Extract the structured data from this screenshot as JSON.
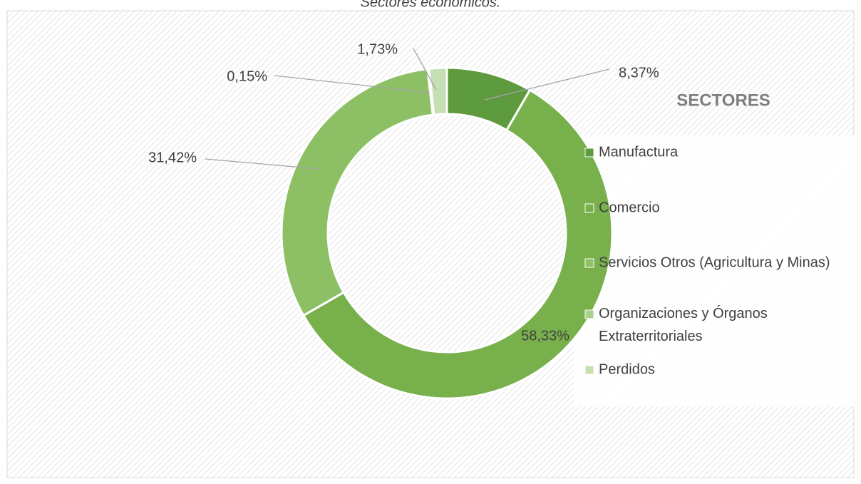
{
  "chart_data": {
    "type": "donut",
    "title": "Sectores económicos.",
    "legend_title": "SECTORES",
    "categories": [
      "Manufactura",
      "Comercio",
      "Servicios Otros (Agricultura y Minas)",
      "Organizaciones y Órganos Extraterritoriales",
      "Perdidos"
    ],
    "values": [
      8.37,
      58.33,
      31.42,
      0.15,
      1.73
    ],
    "value_labels": [
      "8,37%",
      "58,33%",
      "31,42%",
      "0,15%",
      "1,73%"
    ],
    "colors": [
      "#5e9a3e",
      "#78b04c",
      "#8dc064",
      "#a9d08e",
      "#c6e0b4"
    ],
    "legend": "right"
  }
}
